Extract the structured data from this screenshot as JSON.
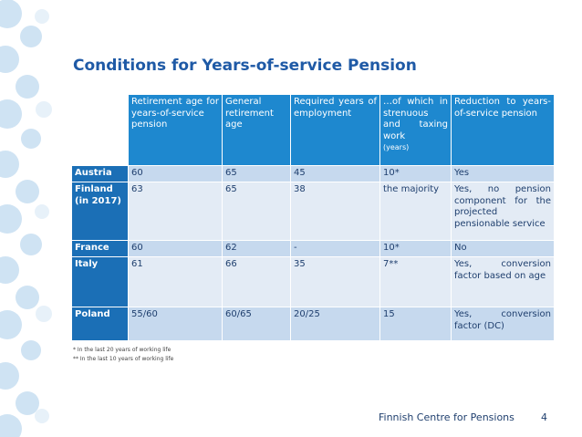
{
  "title": "Conditions for Years-of-service Pension",
  "table": {
    "header": [
      "Retirement age for years-of-service pension",
      "General retirement age",
      "Required years of employment",
      "…of which in strenuous and taxing work",
      "Reduction to years-of-service pension"
    ],
    "header_unit": "(years)",
    "rows": [
      [
        "Austria",
        "60",
        "65",
        "45",
        "10*",
        "Yes"
      ],
      [
        "Finland (in 2017)",
        "63",
        "65",
        "38",
        "the majority",
        "Yes, no pension component for the projected pensionable service"
      ],
      [
        "France",
        "60",
        "62",
        "-",
        "10*",
        "No"
      ],
      [
        "Italy",
        "61",
        "66",
        "35",
        "7**",
        "Yes, conversion factor based on age"
      ],
      [
        "Poland",
        "55/60",
        "60/65",
        "20/25",
        "15",
        "Yes, conversion factor (DC)"
      ]
    ]
  },
  "footnotes": [
    "* In the last 20 years of working life",
    "** In the last 10 years of working life"
  ],
  "footer": {
    "organization": "Finnish Centre for Pensions",
    "page": "4"
  }
}
